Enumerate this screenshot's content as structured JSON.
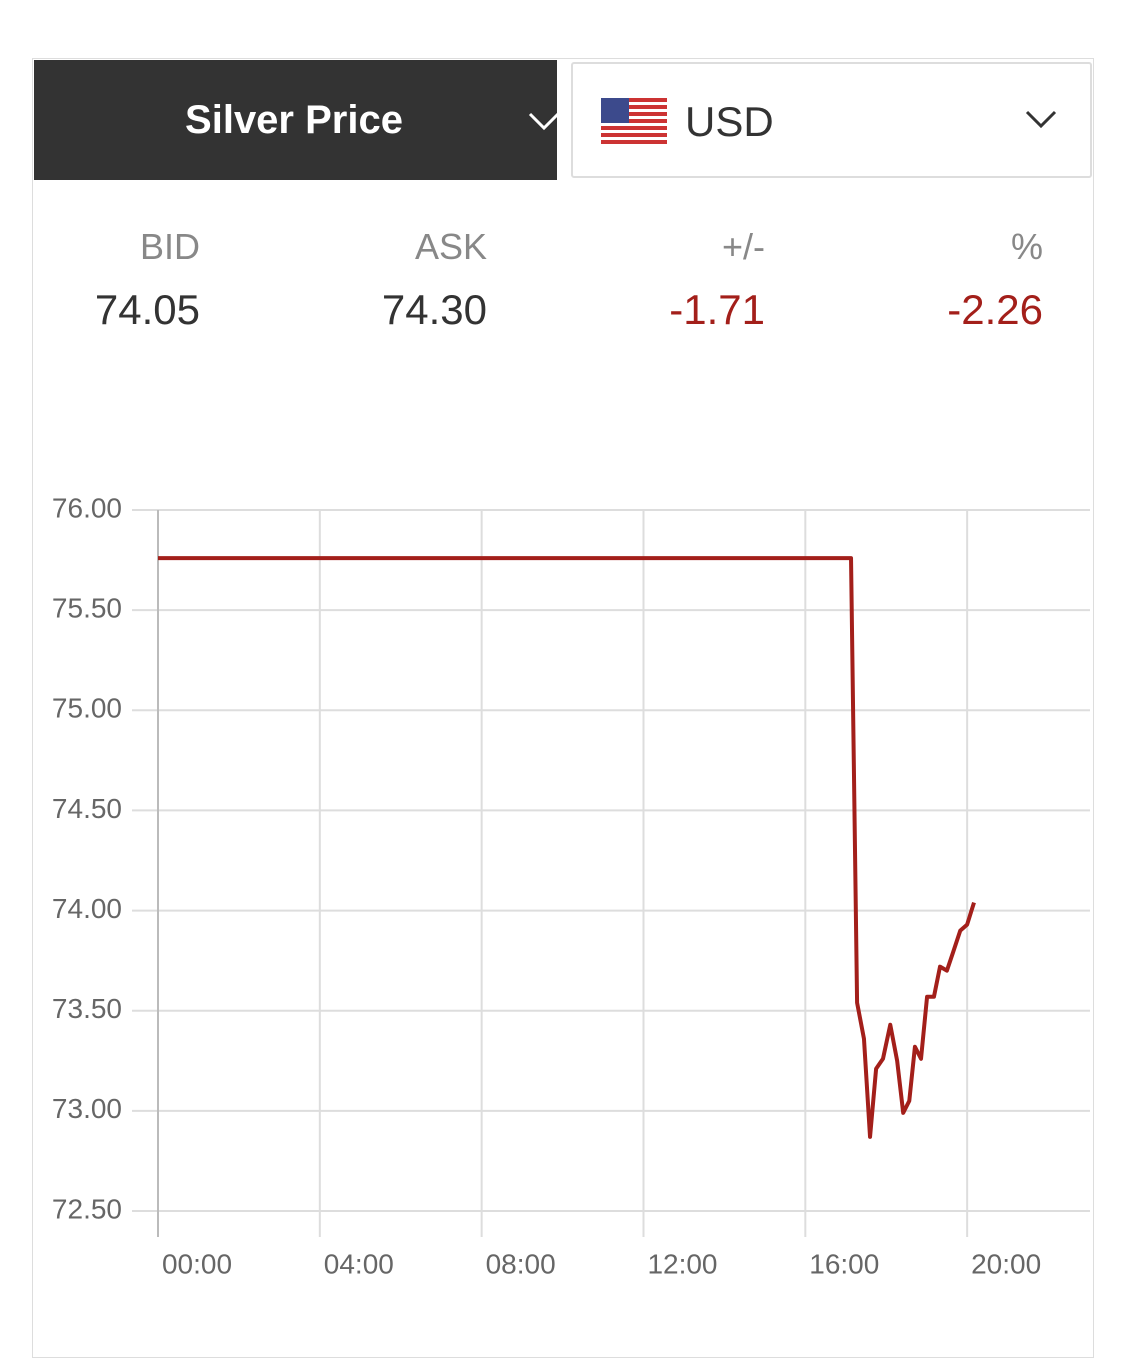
{
  "widget": {
    "title": "Silver Price",
    "currency": "USD",
    "quote": {
      "labels": [
        "BID",
        "ASK",
        "+/-",
        "%"
      ],
      "values": [
        "74.05",
        "74.30",
        "-1.71",
        "-2.26"
      ]
    }
  },
  "chart_data": {
    "type": "line",
    "color": "#a31f1a",
    "grid": true,
    "x": [
      0,
      17.13,
      17.28,
      17.45,
      17.6,
      17.75,
      17.92,
      18.1,
      18.27,
      18.42,
      18.57,
      18.71,
      18.86,
      19.01,
      19.18,
      19.33,
      19.5,
      19.65,
      19.83,
      20.0,
      20.17
    ],
    "values": [
      75.76,
      75.76,
      73.54,
      73.36,
      72.87,
      73.21,
      73.26,
      73.43,
      73.25,
      72.99,
      73.05,
      73.32,
      73.26,
      73.57,
      73.57,
      73.72,
      73.7,
      73.79,
      73.9,
      73.93,
      74.04
    ],
    "xlim": [
      0,
      23
    ],
    "xticks": [
      {
        "value": 0,
        "label": "00:00"
      },
      {
        "value": 4,
        "label": "04:00"
      },
      {
        "value": 8,
        "label": "08:00"
      },
      {
        "value": 12,
        "label": "12:00"
      },
      {
        "value": 16,
        "label": "16:00"
      },
      {
        "value": 20,
        "label": "20:00"
      }
    ],
    "ylim": [
      72.5,
      76
    ],
    "yticks": [
      {
        "value": 72.5,
        "label": "72.50"
      },
      {
        "value": 73,
        "label": "73.00"
      },
      {
        "value": 73.5,
        "label": "73.50"
      },
      {
        "value": 74,
        "label": "74.00"
      },
      {
        "value": 74.5,
        "label": "74.50"
      },
      {
        "value": 75,
        "label": "75.00"
      },
      {
        "value": 75.5,
        "label": "75.50"
      },
      {
        "value": 76,
        "label": "76.00"
      }
    ]
  }
}
